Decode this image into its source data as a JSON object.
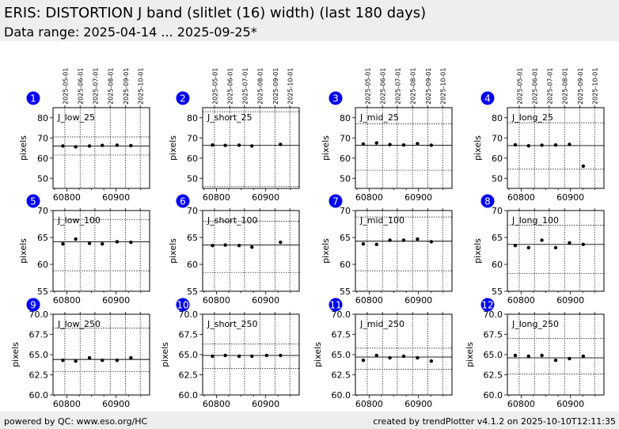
{
  "header": {
    "title": "ERIS: DISTORTION J band (slitlet (16) width) (last 180 days)",
    "subtitle": "Data range: 2025-04-14 ... 2025-09-25*"
  },
  "footer": {
    "left": "powered by QC: www.eso.org/HC",
    "right": "created by trendPlotter v4.1.2 on 2025-10-10T12:11:35"
  },
  "colors": {
    "badge": "#0000ee",
    "header_bg": "#eeeeee",
    "points": "#000000"
  },
  "chart_data": {
    "type": "scatter",
    "ylabel": "pixels",
    "xlim": [
      60772,
      60968
    ],
    "x_ticks": [
      60800,
      60900
    ],
    "date_ticks": [
      {
        "mjd": 60796,
        "label": "2025-05-01"
      },
      {
        "mjd": 60827,
        "label": "2025-06-01"
      },
      {
        "mjd": 60857,
        "label": "2025-07-01"
      },
      {
        "mjd": 60888,
        "label": "2025-08-01"
      },
      {
        "mjd": 60919,
        "label": "2025-09-01"
      },
      {
        "mjd": 60949,
        "label": "2025-10-01"
      }
    ],
    "rows": [
      {
        "ylim": [
          45,
          85
        ],
        "yticks": [
          50,
          60,
          70,
          80
        ],
        "decimals": 0
      },
      {
        "ylim": [
          55,
          70
        ],
        "yticks": [
          55,
          60,
          65,
          70
        ],
        "decimals": 0
      },
      {
        "ylim": [
          60,
          70
        ],
        "yticks": [
          60.0,
          62.5,
          65.0,
          67.5,
          70.0
        ],
        "decimals": 1
      }
    ],
    "panels": [
      {
        "number": "1",
        "name": "J_low_25",
        "row": 0,
        "median": 66.0,
        "upper": 70.5,
        "lower": 61.5,
        "x": [
          60792,
          60818,
          60846,
          60872,
          60902,
          60930
        ],
        "y": [
          66.0,
          65.6,
          66.0,
          66.3,
          66.4,
          66.2
        ]
      },
      {
        "number": "2",
        "name": "J_short_25",
        "row": 0,
        "median": 66.3,
        "upper": 83.0,
        "lower": 46.0,
        "x": [
          60792,
          60818,
          60846,
          60872,
          60930
        ],
        "y": [
          66.5,
          66.3,
          66.4,
          66.0,
          66.8
        ]
      },
      {
        "number": "3",
        "name": "J_mid_25",
        "row": 0,
        "median": 66.4,
        "upper": 77.0,
        "lower": 54.0,
        "x": [
          60788,
          60815,
          60842,
          60870,
          60898,
          60926
        ],
        "y": [
          67.0,
          67.5,
          66.7,
          66.5,
          67.2,
          66.4
        ]
      },
      {
        "number": "4",
        "name": "J_long_25",
        "row": 0,
        "median": 66.2,
        "upper": 77.5,
        "lower": 54.5,
        "x": [
          60788,
          60815,
          60842,
          60870,
          60898,
          60926
        ],
        "y": [
          66.6,
          66.1,
          66.4,
          66.5,
          66.8,
          56.0
        ]
      },
      {
        "number": "5",
        "name": "J_low_100",
        "row": 1,
        "median": 64.2,
        "upper": 68.3,
        "lower": 58.8,
        "x": [
          60792,
          60818,
          60846,
          60872,
          60902,
          60930
        ],
        "y": [
          63.8,
          64.7,
          63.9,
          63.8,
          64.2,
          64.1
        ]
      },
      {
        "number": "6",
        "name": "J_short_100",
        "row": 1,
        "median": 63.6,
        "upper": 68.0,
        "lower": 58.5,
        "x": [
          60792,
          60818,
          60846,
          60872,
          60930
        ],
        "y": [
          63.5,
          63.6,
          63.5,
          63.2,
          64.1
        ]
      },
      {
        "number": "7",
        "name": "J_mid_100",
        "row": 1,
        "median": 64.3,
        "upper": 68.8,
        "lower": 58.8,
        "x": [
          60788,
          60815,
          60842,
          60870,
          60898,
          60926
        ],
        "y": [
          63.8,
          63.7,
          64.5,
          64.5,
          64.7,
          64.2
        ]
      },
      {
        "number": "8",
        "name": "J_long_100",
        "row": 1,
        "median": 63.7,
        "upper": 67.3,
        "lower": 58.3,
        "x": [
          60788,
          60815,
          60842,
          60870,
          60898,
          60926
        ],
        "y": [
          63.5,
          63.1,
          64.5,
          63.1,
          64.0,
          63.7
        ]
      },
      {
        "number": "9",
        "name": "J_low_250",
        "row": 2,
        "median": 64.4,
        "upper": 68.3,
        "lower": 62.9,
        "x": [
          60792,
          60818,
          60846,
          60872,
          60902,
          60930
        ],
        "y": [
          64.3,
          64.2,
          64.6,
          64.3,
          64.3,
          64.6
        ]
      },
      {
        "number": "10",
        "name": "J_short_250",
        "row": 2,
        "median": 64.9,
        "upper": 66.3,
        "lower": 63.3,
        "x": [
          60792,
          60818,
          60846,
          60872,
          60902,
          60930
        ],
        "y": [
          64.8,
          64.9,
          64.8,
          64.8,
          64.9,
          64.9
        ]
      },
      {
        "number": "11",
        "name": "J_mid_250",
        "row": 2,
        "median": 64.7,
        "upper": 65.8,
        "lower": 63.2,
        "x": [
          60788,
          60815,
          60842,
          60870,
          60898,
          60926
        ],
        "y": [
          64.3,
          64.9,
          64.6,
          64.8,
          64.6,
          64.2
        ]
      },
      {
        "number": "12",
        "name": "J_long_250",
        "row": 2,
        "median": 64.6,
        "upper": 67.0,
        "lower": 62.6,
        "x": [
          60788,
          60815,
          60842,
          60870,
          60898,
          60926
        ],
        "y": [
          64.9,
          64.8,
          64.9,
          64.3,
          64.5,
          64.8
        ]
      }
    ]
  }
}
